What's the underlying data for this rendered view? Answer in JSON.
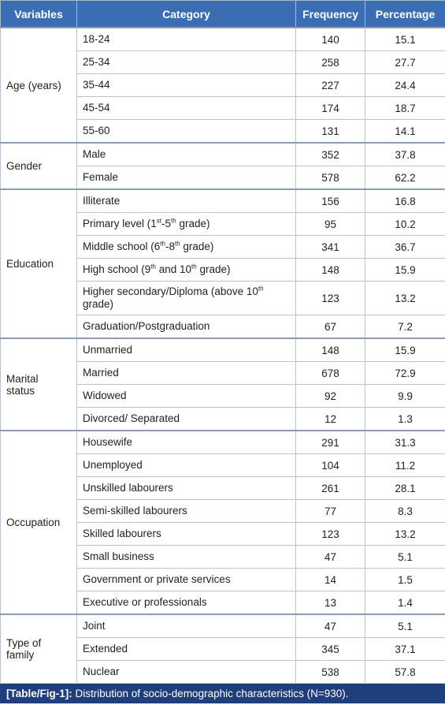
{
  "table": {
    "header": [
      "Variables",
      "Category",
      "Frequency",
      "Percentage"
    ],
    "groups": [
      {
        "variable": "Age (years)",
        "rows": [
          {
            "category": [
              "18-24"
            ],
            "frequency": 140,
            "percentage": 15.1
          },
          {
            "category": [
              "25-34"
            ],
            "frequency": 258,
            "percentage": 27.7
          },
          {
            "category": [
              "35-44"
            ],
            "frequency": 227,
            "percentage": 24.4
          },
          {
            "category": [
              "45-54"
            ],
            "frequency": 174,
            "percentage": 18.7
          },
          {
            "category": [
              "55-60"
            ],
            "frequency": 131,
            "percentage": 14.1
          }
        ]
      },
      {
        "variable": "Gender",
        "rows": [
          {
            "category": [
              "Male"
            ],
            "frequency": 352,
            "percentage": 37.8
          },
          {
            "category": [
              "Female"
            ],
            "frequency": 578,
            "percentage": 62.2
          }
        ]
      },
      {
        "variable": "Education",
        "rows": [
          {
            "category": [
              "Illiterate"
            ],
            "frequency": 156,
            "percentage": 16.8
          },
          {
            "category": [
              "Primary level (1",
              "st",
              "-5",
              "th",
              " grade)"
            ],
            "frequency": 95,
            "percentage": 10.2
          },
          {
            "category": [
              "Middle school (6",
              "th",
              "-8",
              "th",
              " grade)"
            ],
            "frequency": 341,
            "percentage": 36.7
          },
          {
            "category": [
              "High school (9",
              "th",
              " and 10",
              "th",
              " grade)"
            ],
            "frequency": 148,
            "percentage": 15.9
          },
          {
            "category": [
              "Higher secondary/Diploma (above 10",
              "th",
              " grade)"
            ],
            "frequency": 123,
            "percentage": 13.2
          },
          {
            "category": [
              "Graduation/Postgraduation"
            ],
            "frequency": 67,
            "percentage": 7.2
          }
        ]
      },
      {
        "variable": "Marital status",
        "rows": [
          {
            "category": [
              "Unmarried"
            ],
            "frequency": 148,
            "percentage": 15.9
          },
          {
            "category": [
              "Married"
            ],
            "frequency": 678,
            "percentage": 72.9
          },
          {
            "category": [
              "Widowed"
            ],
            "frequency": 92,
            "percentage": 9.9
          },
          {
            "category": [
              "Divorced/ Separated"
            ],
            "frequency": 12,
            "percentage": 1.3
          }
        ]
      },
      {
        "variable": "Occupation",
        "rows": [
          {
            "category": [
              "Housewife"
            ],
            "frequency": 291,
            "percentage": 31.3
          },
          {
            "category": [
              "Unemployed"
            ],
            "frequency": 104,
            "percentage": 11.2
          },
          {
            "category": [
              "Unskilled labourers"
            ],
            "frequency": 261,
            "percentage": 28.1
          },
          {
            "category": [
              "Semi-skilled labourers"
            ],
            "frequency": 77,
            "percentage": 8.3
          },
          {
            "category": [
              "Skilled labourers"
            ],
            "frequency": 123,
            "percentage": 13.2
          },
          {
            "category": [
              "Small business"
            ],
            "frequency": 47,
            "percentage": 5.1
          },
          {
            "category": [
              "Government or private services"
            ],
            "frequency": 14,
            "percentage": 1.5
          },
          {
            "category": [
              "Executive or professionals"
            ],
            "frequency": 13,
            "percentage": 1.4
          }
        ]
      },
      {
        "variable": "Type of family",
        "rows": [
          {
            "category": [
              "Joint"
            ],
            "frequency": 47,
            "percentage": 5.1
          },
          {
            "category": [
              "Extended"
            ],
            "frequency": 345,
            "percentage": 37.1
          },
          {
            "category": [
              "Nuclear"
            ],
            "frequency": 538,
            "percentage": 57.8
          }
        ]
      }
    ],
    "caption": {
      "label": "[Table/Fig-1]:",
      "text": " Distribution of socio-demographic characteristics (N=930)."
    }
  }
}
